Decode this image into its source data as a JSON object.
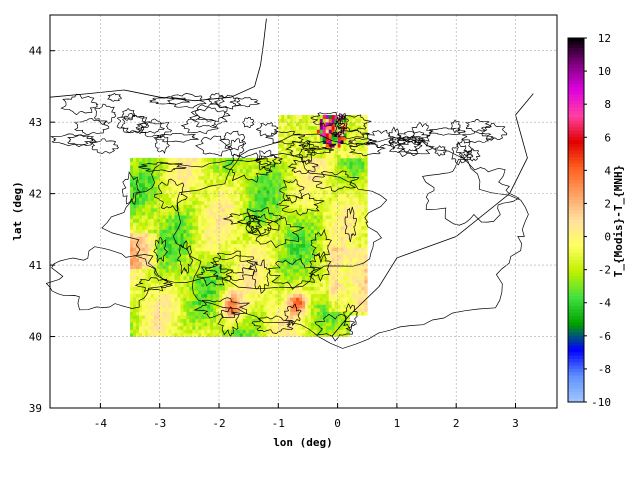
{
  "chart_data": {
    "type": "heatmap",
    "title": "",
    "xlabel": "lon (deg)",
    "ylabel": "lat (deg)",
    "xlim": [
      -4.85,
      3.7
    ],
    "ylim": [
      39,
      44.5
    ],
    "x_ticks": [
      "-4",
      "-3",
      "-2",
      "-1",
      "0",
      "1",
      "2",
      "3"
    ],
    "y_ticks": [
      "39",
      "40",
      "41",
      "42",
      "43",
      "44"
    ],
    "grid": true,
    "colorbar": {
      "label": "T_{Modis}-T_{MNH}",
      "range": [
        -10,
        12
      ],
      "ticks": [
        "-10",
        "-8",
        "-6",
        "-4",
        "-2",
        "0",
        "2",
        "4",
        "6",
        "8",
        "10",
        "12"
      ],
      "colors": [
        "#a0c8ff",
        "#6090ff",
        "#0000ff",
        "#00a000",
        "#40e040",
        "#c0f000",
        "#ffff60",
        "#ffe0a0",
        "#ffa060",
        "#ff6020",
        "#e00000",
        "#ff40a0",
        "#e000e0",
        "#800080",
        "#000000"
      ]
    },
    "data_extent": {
      "lon": [
        -3.5,
        0.5
      ],
      "lat": [
        40.0,
        42.5
      ],
      "pyrenees_lon": [
        -1.0,
        0.5
      ],
      "pyrenees_lat": [
        42.5,
        43.1
      ]
    },
    "field_notes": "Mostly -2 to 0 (green/yellow) over the Ebro basin, positive hotspots (2 to 6) near lon -1.8,-0.7 lat 40.4 and very strong positive/negative values near lon -0.3..0.1 lat 42.8..43.0"
  }
}
